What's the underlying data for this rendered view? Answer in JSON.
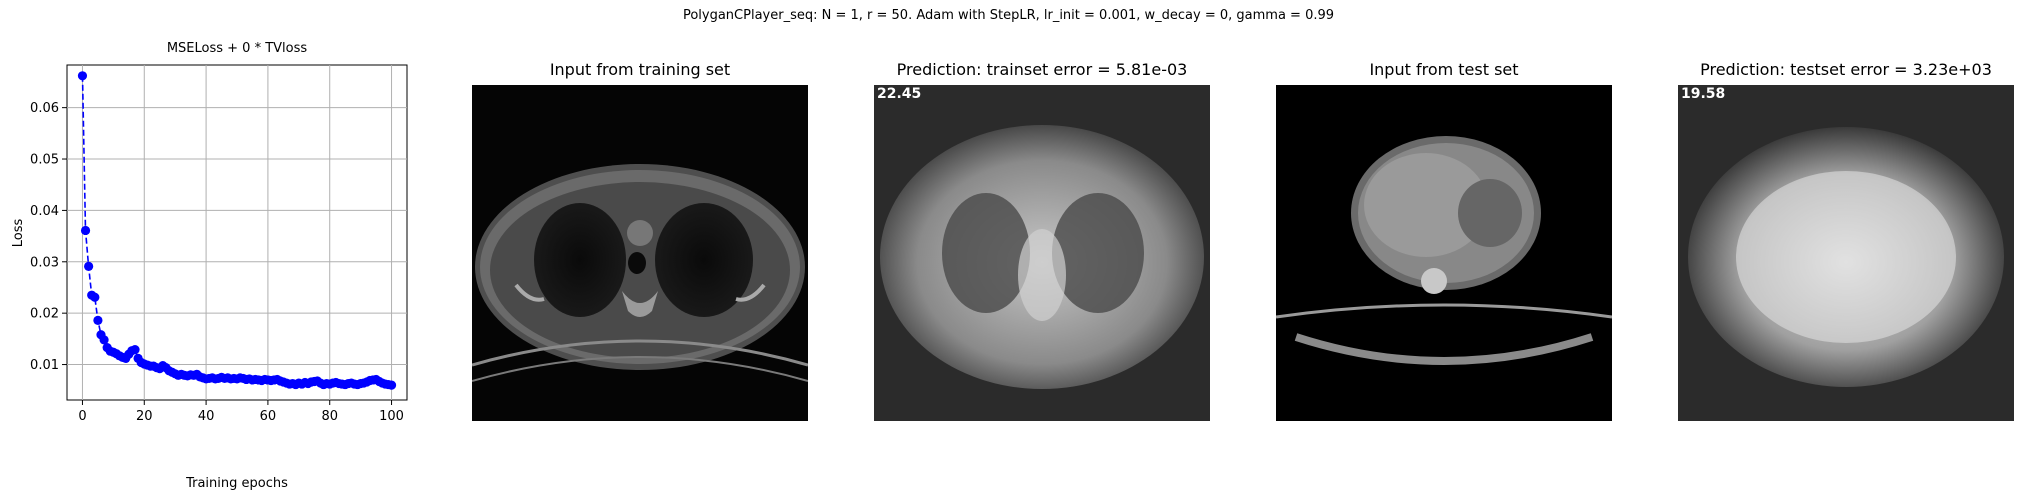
{
  "figure": {
    "suptitle": "PolyganCPlayer_seq: N = 1, r = 50. Adam with StepLR, lr_init = 0.001, w_decay = 0, gamma = 0.99"
  },
  "panels": [
    {
      "title": "Input from training set",
      "overlay": ""
    },
    {
      "title": "Prediction: trainset error = 5.81e-03",
      "overlay": "22.45"
    },
    {
      "title": "Input from test set",
      "overlay": ""
    },
    {
      "title": "Prediction: testset error = 3.23e+03",
      "overlay": "19.58"
    }
  ],
  "colors": {
    "series": "#0000ff",
    "grid": "#b0b0b0"
  },
  "chart_data": {
    "type": "line",
    "title": "MSELoss + 0 * TVloss",
    "xlabel": "Training epochs",
    "ylabel": "Loss",
    "xlim": [
      -5,
      105
    ],
    "ylim": [
      0.0031,
      0.0683
    ],
    "xticks": [
      0,
      20,
      40,
      60,
      80,
      100
    ],
    "yticks": [
      0.01,
      0.02,
      0.03,
      0.04,
      0.05,
      0.06
    ],
    "ytick_labels": [
      "0.01",
      "0.02",
      "0.03",
      "0.04",
      "0.05",
      "0.06"
    ],
    "grid": true,
    "line_style": "dashed",
    "marker": "circle",
    "series": [
      {
        "x": [
          0,
          1,
          2,
          3,
          4,
          5,
          6,
          7,
          8,
          9,
          10,
          11,
          12,
          13,
          14,
          15,
          16,
          17,
          18,
          19,
          20,
          21,
          22,
          23,
          24,
          25,
          26,
          27,
          28,
          29,
          30,
          31,
          32,
          33,
          34,
          35,
          36,
          37,
          38,
          39,
          40,
          41,
          42,
          43,
          44,
          45,
          46,
          47,
          48,
          49,
          50,
          51,
          52,
          53,
          54,
          55,
          56,
          57,
          58,
          59,
          60,
          61,
          62,
          63,
          64,
          65,
          66,
          67,
          68,
          69,
          70,
          71,
          72,
          73,
          74,
          75,
          76,
          77,
          78,
          79,
          80,
          81,
          82,
          83,
          84,
          85,
          86,
          87,
          88,
          89,
          90,
          91,
          92,
          93,
          94,
          95,
          96,
          97,
          98,
          99,
          100
        ],
        "y": [
          0.0662,
          0.0361,
          0.0291,
          0.0235,
          0.0231,
          0.0186,
          0.0158,
          0.0148,
          0.0133,
          0.0126,
          0.0124,
          0.0121,
          0.0117,
          0.0114,
          0.0112,
          0.012,
          0.0127,
          0.0129,
          0.0112,
          0.0104,
          0.0101,
          0.0099,
          0.0097,
          0.0097,
          0.0094,
          0.0092,
          0.0098,
          0.0094,
          0.0088,
          0.0085,
          0.0082,
          0.0079,
          0.0081,
          0.0079,
          0.0078,
          0.008,
          0.0079,
          0.0081,
          0.0076,
          0.0074,
          0.0072,
          0.0073,
          0.0074,
          0.0072,
          0.0073,
          0.0075,
          0.0073,
          0.0074,
          0.0072,
          0.0073,
          0.0072,
          0.0074,
          0.0073,
          0.0071,
          0.0072,
          0.007,
          0.0071,
          0.007,
          0.0069,
          0.0071,
          0.007,
          0.0069,
          0.007,
          0.0071,
          0.0068,
          0.0066,
          0.0064,
          0.0062,
          0.0063,
          0.0061,
          0.0064,
          0.0062,
          0.0065,
          0.0063,
          0.0066,
          0.0067,
          0.0068,
          0.0064,
          0.0061,
          0.0063,
          0.0062,
          0.0064,
          0.0065,
          0.0063,
          0.0062,
          0.0061,
          0.0063,
          0.0064,
          0.0062,
          0.0061,
          0.0063,
          0.0064,
          0.0066,
          0.0069,
          0.007,
          0.0071,
          0.0067,
          0.0064,
          0.0062,
          0.0061,
          0.006
        ]
      }
    ]
  }
}
